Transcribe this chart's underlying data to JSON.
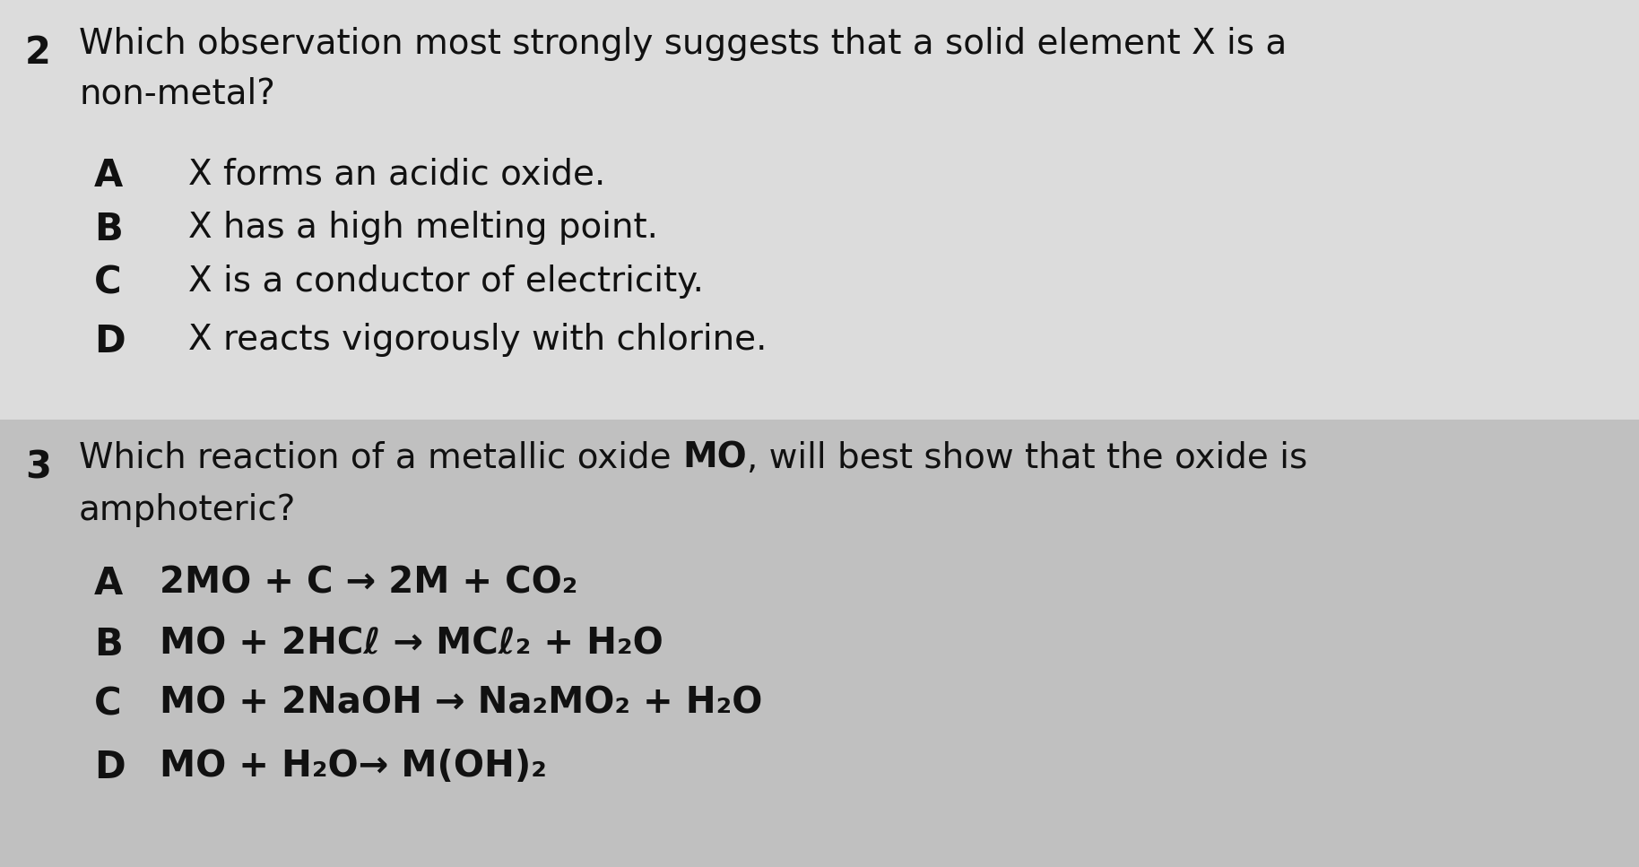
{
  "bg_color": "#c8c8c8",
  "panel1_color": "#dcdcdc",
  "panel2_color": "#c0c0c0",
  "q2_num": "2",
  "q2_line1": "Which observation most strongly suggests that a solid element X is a",
  "q2_line2": "non-metal?",
  "q2_opts": [
    [
      "A",
      "X forms an acidic oxide."
    ],
    [
      "B",
      "X has a high melting point."
    ],
    [
      "C",
      "X is a conductor of electricity."
    ],
    [
      "D",
      "X reacts vigorously with chlorine."
    ]
  ],
  "q3_num": "3",
  "q3_line1_normal": "Which reaction of a metallic oxide ",
  "q3_line1_bold": "MO",
  "q3_line1_end": ", will best show that the oxide is",
  "q3_line2": "amphoteric?",
  "q3_opts": [
    [
      "A",
      "2MO + C → 2M + CO₂"
    ],
    [
      "B",
      "MO + 2HCℓ → MCℓ₂ + H₂O"
    ],
    [
      "C",
      "MO + 2NaOH → Na₂MO₂ + H₂O"
    ],
    [
      "D",
      "MO + H₂O→ M(OH)₂"
    ]
  ],
  "text_color": "#111111",
  "font_size": 28,
  "font_size_num": 30
}
